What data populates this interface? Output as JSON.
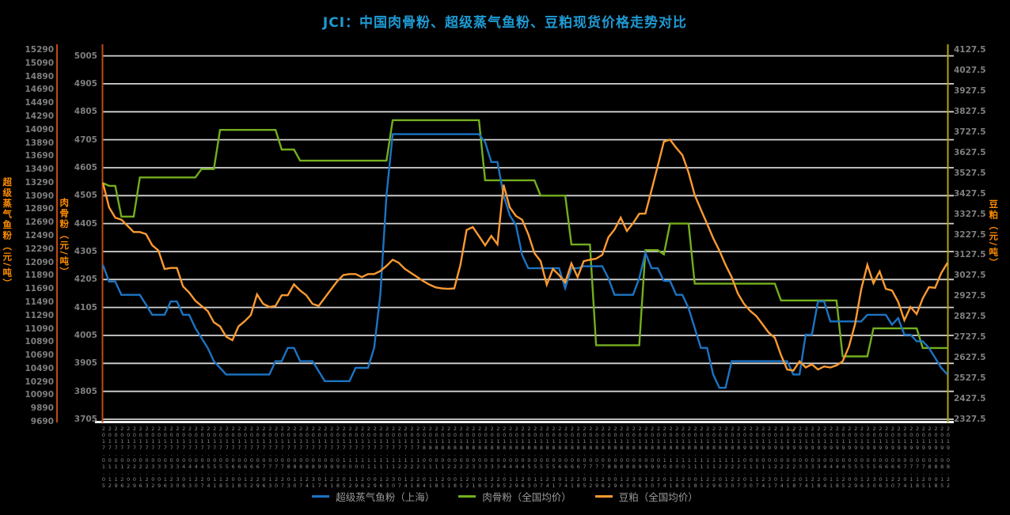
{
  "title": "JCI：中国肉骨粉、超级蒸气鱼粉、豆粕现货价格走势对比",
  "colors": {
    "background": "#000000",
    "title": "#1E9BD4",
    "grid": "#D4D4D4",
    "bottom_axis": "#F0F0F0",
    "left_axis_lines": "#BF4A14",
    "right_axis_line": "#B1A40A",
    "tick_text": "#7F7F7F",
    "axis_title_text": "#FF8C00",
    "legend_text": "#9A9A9A"
  },
  "chart_data": {
    "type": "line",
    "grid": true,
    "legend_position": "bottom",
    "x": [
      "2017.01.05",
      "2017.01.12",
      "2017.01.19",
      "2017.01.26",
      "2017.02.02",
      "2017.02.09",
      "2017.02.16",
      "2017.02.23",
      "2017.03.02",
      "2017.03.09",
      "2017.03.16",
      "2017.03.23",
      "2017.03.30",
      "2017.04.06",
      "2017.04.13",
      "2017.04.20",
      "2017.04.27",
      "2017.05.04",
      "2017.05.11",
      "2017.05.18",
      "2017.05.25",
      "2017.06.01",
      "2017.06.08",
      "2017.06.15",
      "2017.06.22",
      "2017.06.29",
      "2017.07.06",
      "2017.07.13",
      "2017.07.20",
      "2017.07.27",
      "2017.08.03",
      "2017.08.10",
      "2017.08.17",
      "2017.08.24",
      "2017.08.31",
      "2017.09.07",
      "2017.09.14",
      "2017.09.21",
      "2017.09.28",
      "2017.10.05",
      "2017.10.12",
      "2017.10.19",
      "2017.10.26",
      "2017.11.02",
      "2017.11.09",
      "2017.11.16",
      "2017.11.23",
      "2017.11.30",
      "2017.12.07",
      "2017.12.14",
      "2017.12.21",
      "2017.12.28",
      "2018.01.04",
      "2018.01.11",
      "2018.01.18",
      "2018.01.25",
      "2018.02.01",
      "2018.02.08",
      "2018.02.15",
      "2018.02.22",
      "2018.03.01",
      "2018.03.08",
      "2018.03.15",
      "2018.03.22",
      "2018.03.29",
      "2018.04.05",
      "2018.04.12",
      "2018.04.19",
      "2018.04.26",
      "2018.05.03",
      "2018.05.10",
      "2018.05.17",
      "2018.05.24",
      "2018.05.31",
      "2018.06.07",
      "2018.06.14",
      "2018.06.21",
      "2018.06.28",
      "2018.07.05",
      "2018.07.12",
      "2018.07.19",
      "2018.07.26",
      "2018.08.02",
      "2018.08.09",
      "2018.08.16",
      "2018.08.23",
      "2018.08.30",
      "2018.09.06",
      "2018.09.13",
      "2018.09.20",
      "2018.09.27",
      "2018.10.04",
      "2018.10.11",
      "2018.10.18",
      "2018.10.25",
      "2018.11.01",
      "2018.11.08",
      "2018.11.15",
      "2018.11.22",
      "2018.11.29",
      "2018.12.06",
      "2018.12.13",
      "2018.12.20",
      "2018.12.27",
      "2019.01.03",
      "2019.01.10",
      "2019.01.17",
      "2019.01.24",
      "2019.01.31",
      "2019.02.07",
      "2019.02.14",
      "2019.02.21",
      "2019.02.28",
      "2019.03.07",
      "2019.03.14",
      "2019.03.21",
      "2019.03.28",
      "2019.04.04",
      "2019.04.11",
      "2019.04.18",
      "2019.04.25",
      "2019.05.02",
      "2019.05.09",
      "2019.05.16",
      "2019.05.23",
      "2019.05.30",
      "2019.06.06",
      "2019.06.13",
      "2019.06.20",
      "2019.06.27",
      "2019.07.04",
      "2019.07.11",
      "2019.07.18",
      "2019.07.25",
      "2019.08.01",
      "2019.08.08",
      "2019.08.15",
      "2019.08.22"
    ],
    "series": [
      {
        "name": "超级蒸气鱼粉（上海）",
        "axis": "left_outer",
        "color": "#1B74C4",
        "values": [
          12050,
          11800,
          11800,
          11600,
          11600,
          11600,
          11600,
          11450,
          11300,
          11300,
          11300,
          11500,
          11500,
          11300,
          11300,
          11100,
          10950,
          10800,
          10600,
          10500,
          10400,
          10400,
          10400,
          10400,
          10400,
          10400,
          10400,
          10400,
          10600,
          10600,
          10800,
          10800,
          10600,
          10600,
          10600,
          10450,
          10300,
          10300,
          10300,
          10300,
          10300,
          10500,
          10500,
          10500,
          10800,
          11600,
          13100,
          14020,
          14020,
          14020,
          14020,
          14020,
          14020,
          14020,
          14020,
          14020,
          14020,
          14020,
          14020,
          14020,
          14020,
          14020,
          13900,
          13600,
          13600,
          13100,
          12800,
          12650,
          12200,
          12000,
          12000,
          12000,
          12000,
          12000,
          12000,
          11700,
          12000,
          12000,
          12030,
          12030,
          12030,
          12030,
          11850,
          11600,
          11600,
          11600,
          11600,
          11850,
          12230,
          12000,
          12000,
          11810,
          11810,
          11600,
          11600,
          11400,
          11100,
          10800,
          10800,
          10400,
          10200,
          10200,
          10600,
          10600,
          10600,
          10600,
          10600,
          10600,
          10600,
          10600,
          10600,
          10600,
          10400,
          10400,
          11000,
          11000,
          11500,
          11500,
          11200,
          11200,
          11200,
          11200,
          11200,
          11200,
          11300,
          11300,
          11300,
          11300,
          11150,
          11250,
          11000,
          11000,
          10900,
          10900,
          10800,
          10650,
          10500,
          10400
        ]
      },
      {
        "name": "肉骨粉（全国均价）",
        "axis": "left_inner",
        "color": "#74AE1E",
        "values": [
          4550,
          4540,
          4540,
          4430,
          4430,
          4430,
          4570,
          4570,
          4570,
          4570,
          4570,
          4570,
          4570,
          4570,
          4570,
          4570,
          4600,
          4600,
          4600,
          4740,
          4740,
          4740,
          4740,
          4740,
          4740,
          4740,
          4740,
          4740,
          4740,
          4670,
          4670,
          4670,
          4630,
          4630,
          4630,
          4630,
          4630,
          4630,
          4630,
          4630,
          4630,
          4630,
          4630,
          4630,
          4630,
          4630,
          4630,
          4775,
          4775,
          4775,
          4775,
          4775,
          4775,
          4775,
          4775,
          4775,
          4775,
          4775,
          4775,
          4775,
          4775,
          4775,
          4560,
          4560,
          4560,
          4560,
          4560,
          4560,
          4560,
          4560,
          4560,
          4505,
          4505,
          4505,
          4505,
          4505,
          4330,
          4330,
          4330,
          4330,
          3970,
          3970,
          3970,
          3970,
          3970,
          3970,
          3970,
          3970,
          4310,
          4310,
          4310,
          4295,
          4405,
          4405,
          4405,
          4405,
          4190,
          4190,
          4190,
          4190,
          4190,
          4190,
          4190,
          4190,
          4190,
          4190,
          4190,
          4190,
          4190,
          4190,
          4130,
          4130,
          4130,
          4130,
          4130,
          4130,
          4130,
          4130,
          4130,
          4130,
          3930,
          3930,
          3930,
          3930,
          3930,
          4030,
          4030,
          4030,
          4030,
          4030,
          4030,
          4030,
          4030,
          3960,
          3960,
          3960,
          3960,
          3960
        ]
      },
      {
        "name": "豆粕（全国均价）",
        "axis": "right",
        "color": "#FB9A31",
        "values": [
          3480,
          3360,
          3310,
          3300,
          3270,
          3240,
          3240,
          3230,
          3175,
          3150,
          3060,
          3065,
          3065,
          2975,
          2945,
          2905,
          2880,
          2855,
          2800,
          2780,
          2730,
          2713,
          2780,
          2805,
          2835,
          2936,
          2890,
          2875,
          2880,
          2932,
          2932,
          2985,
          2955,
          2932,
          2890,
          2880,
          2920,
          2960,
          3000,
          3030,
          3035,
          3035,
          3020,
          3035,
          3035,
          3050,
          3075,
          3105,
          3090,
          3060,
          3040,
          3020,
          3000,
          2983,
          2970,
          2965,
          2963,
          2965,
          3080,
          3250,
          3264,
          3220,
          3175,
          3221,
          3180,
          3470,
          3360,
          3318,
          3300,
          3230,
          3137,
          3098,
          2983,
          3060,
          3030,
          2994,
          3087,
          3020,
          3098,
          3105,
          3110,
          3129,
          3214,
          3252,
          3310,
          3245,
          3283,
          3329,
          3330,
          3445,
          3560,
          3680,
          3690,
          3650,
          3615,
          3530,
          3420,
          3349,
          3280,
          3210,
          3150,
          3080,
          3020,
          2940,
          2890,
          2855,
          2830,
          2790,
          2750,
          2725,
          2640,
          2570,
          2565,
          2610,
          2580,
          2595,
          2570,
          2585,
          2580,
          2590,
          2610,
          2680,
          2790,
          2960,
          3080,
          2990,
          3048,
          2963,
          2955,
          2900,
          2810,
          2875,
          2840,
          2917,
          2971,
          2968,
          3040,
          3090
        ]
      }
    ],
    "axes": {
      "left_outer": {
        "label": "超级蒸气鱼粉（元/吨）",
        "min": 9690,
        "max": 15290,
        "step": 200,
        "ticks": [
          15290,
          15090,
          14890,
          14690,
          14490,
          14290,
          14090,
          13890,
          13690,
          13490,
          13290,
          13090,
          12890,
          12690,
          12490,
          12290,
          12090,
          11890,
          11690,
          11490,
          11290,
          11090,
          10890,
          10690,
          10490,
          10290,
          10090,
          9890,
          9690
        ]
      },
      "left_inner": {
        "label": "肉骨粉（元/吨）",
        "min": 3705,
        "max": 5005,
        "step": 100,
        "ticks": [
          5005,
          4905,
          4805,
          4705,
          4605,
          4505,
          4405,
          4305,
          4205,
          4105,
          4005,
          3905,
          3805,
          3705
        ]
      },
      "right": {
        "label": "豆粕（元/吨）",
        "min": 2327.5,
        "max": 4127.5,
        "step": 100,
        "ticks": [
          4127.5,
          4027.5,
          3927.5,
          3827.5,
          3727.5,
          3627.5,
          3527.5,
          3427.5,
          3327.5,
          3227.5,
          3127.5,
          3027.5,
          2927.5,
          2827.5,
          2727.5,
          2627.5,
          2527.5,
          2427.5,
          2327.5
        ]
      }
    }
  }
}
